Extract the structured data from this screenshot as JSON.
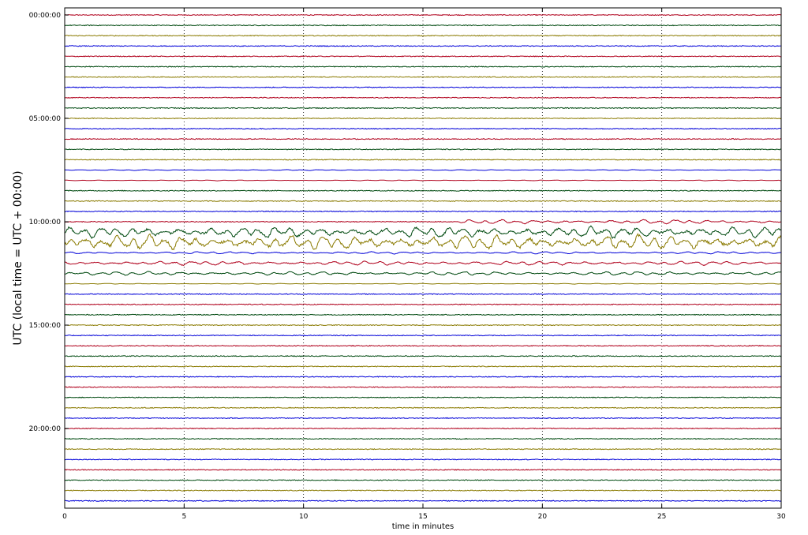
{
  "chart_data": {
    "type": "line",
    "subtype": "helicorder (dayplot seismogram)",
    "title": "",
    "xlabel": "time in minutes",
    "ylabel": "UTC (local time = UTC + 00:00)",
    "xlim": [
      0,
      30
    ],
    "x_ticks": [
      0,
      5,
      10,
      15,
      20,
      25,
      30
    ],
    "x_tick_labels": [
      "0",
      "5",
      "10",
      "15",
      "20",
      "25",
      "30"
    ],
    "y_tick_labels": [
      "00:00:00",
      "05:00:00",
      "10:00:00",
      "15:00:00",
      "20:00:00"
    ],
    "y_tick_trace_index": [
      0,
      10,
      20,
      30,
      40
    ],
    "trace_interval_minutes": 30,
    "trace_count": 48,
    "grid": "vertical dotted at every 5 minutes",
    "series_colors": [
      "#b0001c",
      "#004a10",
      "#8a7a00",
      "#0000d8"
    ],
    "color_cycle_note_values": [
      "red",
      "green",
      "olive",
      "blue"
    ],
    "activity_levels": {
      "quiet_amplitude": 0.04,
      "events": [
        {
          "trace": 15,
          "start_min": 0,
          "end_min": 30,
          "level": 0.1
        },
        {
          "trace": 16,
          "start_min": 0,
          "end_min": 30,
          "level": 0.08
        },
        {
          "trace": 20,
          "start_min": 16.3,
          "end_min": 30,
          "level": 0.45
        },
        {
          "trace": 21,
          "start_min": 0,
          "end_min": 30,
          "level": 1.2
        },
        {
          "trace": 22,
          "start_min": 0,
          "end_min": 30,
          "level": 1.6
        },
        {
          "trace": 23,
          "start_min": 0,
          "end_min": 30,
          "level": 0.25
        },
        {
          "trace": 24,
          "start_min": 0,
          "end_min": 30,
          "level": 0.45
        },
        {
          "trace": 25,
          "start_min": 0,
          "end_min": 30,
          "level": 0.4
        },
        {
          "trace": 26,
          "start_min": 0,
          "end_min": 30,
          "level": 0.08
        }
      ]
    }
  }
}
